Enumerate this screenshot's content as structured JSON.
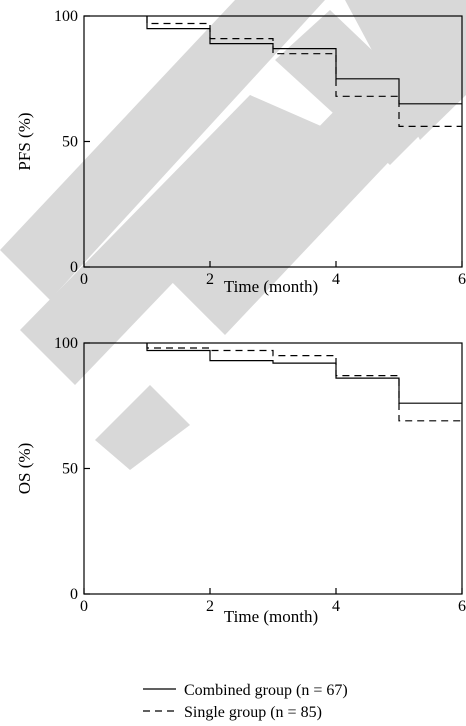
{
  "chart_data": [
    {
      "type": "line",
      "step": true,
      "xlabel": "Time (month)",
      "ylabel": "PFS (%)",
      "xlim": [
        0,
        6
      ],
      "ylim": [
        0,
        100
      ],
      "xticks": [
        "0",
        "2",
        "4",
        "6"
      ],
      "yticks": [
        "0",
        "50",
        "100"
      ],
      "series": [
        {
          "name": "Combined group (n = 67)",
          "line_style": "solid",
          "x": [
            1,
            1,
            2,
            2,
            3,
            3,
            4,
            4,
            5,
            5,
            6
          ],
          "y": [
            100,
            95,
            95,
            89,
            89,
            87,
            87,
            75,
            75,
            65,
            65
          ]
        },
        {
          "name": "Single group (n = 85)",
          "line_style": "dashed",
          "x": [
            1,
            1,
            2,
            2,
            3,
            3,
            4,
            4,
            5,
            5,
            6
          ],
          "y": [
            100,
            97,
            97,
            91,
            91,
            85,
            85,
            68,
            68,
            56,
            56
          ]
        }
      ]
    },
    {
      "type": "line",
      "step": true,
      "xlabel": "Time (month)",
      "ylabel": "OS (%)",
      "xlim": [
        0,
        6
      ],
      "ylim": [
        0,
        100
      ],
      "xticks": [
        "0",
        "2",
        "4",
        "6"
      ],
      "yticks": [
        "0",
        "50",
        "100"
      ],
      "series": [
        {
          "name": "Combined group (n = 67)",
          "line_style": "solid",
          "x": [
            1,
            1,
            2,
            2,
            3,
            3,
            4,
            4,
            5,
            5,
            6
          ],
          "y": [
            100,
            97,
            97,
            93,
            93,
            92,
            92,
            86,
            86,
            76,
            76
          ]
        },
        {
          "name": "Single group (n = 85)",
          "line_style": "dashed",
          "x": [
            1,
            1,
            2,
            2,
            3,
            3,
            4,
            4,
            5,
            5,
            6
          ],
          "y": [
            100,
            98,
            98,
            97,
            97,
            95,
            95,
            87,
            87,
            69,
            69
          ]
        }
      ]
    }
  ],
  "legend": {
    "items": [
      {
        "label": "Combined group (n = 67)",
        "line_style": "solid"
      },
      {
        "label": "Single group (n = 85)",
        "line_style": "dashed"
      }
    ]
  },
  "watermark": {
    "text": "RET",
    "color": "#d8d8d8"
  },
  "colors": {
    "line": "#000000",
    "background": "#ffffff"
  }
}
